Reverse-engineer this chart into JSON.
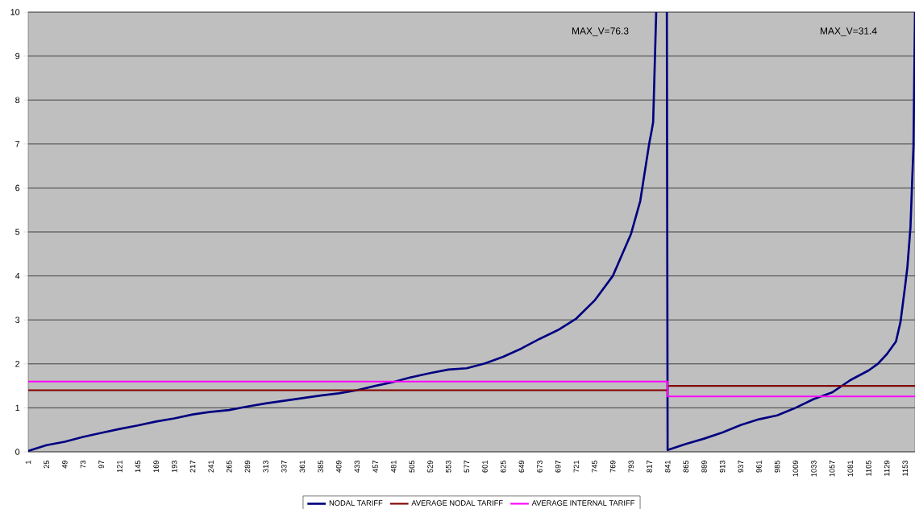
{
  "chart_data": {
    "type": "line",
    "annotations": [
      "MAX_V=76.3",
      "MAX_V=31.4"
    ],
    "xlim": [
      1,
      1166
    ],
    "ylim": [
      0,
      10
    ],
    "xticks": [
      1,
      25,
      49,
      73,
      97,
      121,
      145,
      169,
      193,
      217,
      241,
      265,
      289,
      313,
      337,
      361,
      385,
      409,
      433,
      457,
      481,
      505,
      529,
      553,
      577,
      601,
      625,
      649,
      673,
      697,
      721,
      745,
      769,
      793,
      817,
      841,
      865,
      889,
      913,
      937,
      961,
      985,
      1009,
      1033,
      1057,
      1081,
      1105,
      1129,
      1153
    ],
    "yticks": [
      0,
      1,
      2,
      3,
      4,
      5,
      6,
      7,
      8,
      9,
      10
    ],
    "grid": "y",
    "legend": "bottom",
    "series": [
      {
        "name": "NODAL TARIFF",
        "color": "#000080",
        "x": [
          1,
          25,
          49,
          73,
          97,
          121,
          145,
          169,
          193,
          217,
          241,
          265,
          289,
          313,
          337,
          361,
          385,
          409,
          433,
          457,
          481,
          505,
          529,
          553,
          577,
          601,
          625,
          649,
          673,
          697,
          721,
          745,
          769,
          793,
          805,
          817,
          820,
          822,
          826,
          833,
          840,
          841,
          865,
          889,
          913,
          937,
          961,
          985,
          1009,
          1033,
          1057,
          1081,
          1105,
          1117,
          1129,
          1141,
          1147,
          1153,
          1156,
          1160,
          1164,
          1166
        ],
        "values": [
          0.02,
          0.15,
          0.23,
          0.34,
          0.43,
          0.52,
          0.6,
          0.69,
          0.76,
          0.85,
          0.91,
          0.95,
          1.03,
          1.1,
          1.16,
          1.22,
          1.28,
          1.33,
          1.4,
          1.5,
          1.59,
          1.7,
          1.79,
          1.87,
          1.9,
          2.01,
          2.16,
          2.35,
          2.57,
          2.77,
          3.03,
          3.44,
          4.0,
          4.96,
          5.7,
          7.03,
          7.3,
          7.5,
          10,
          null,
          10,
          0.04,
          0.18,
          0.3,
          0.44,
          0.61,
          0.74,
          0.83,
          1.0,
          1.2,
          1.35,
          1.63,
          1.85,
          2.0,
          2.22,
          2.51,
          2.96,
          3.77,
          4.2,
          5.1,
          6.95,
          10
        ]
      },
      {
        "name": "AVERAGE NODAL TARIFF",
        "color": "#800000",
        "x": [
          1,
          841,
          841,
          1166
        ],
        "values": [
          1.4,
          1.4,
          1.5,
          1.5
        ]
      },
      {
        "name": "AVERAGE INTERNAL TARIFF",
        "color": "#ff00ff",
        "x": [
          1,
          841,
          841,
          1166
        ],
        "values": [
          1.6,
          1.6,
          1.26,
          1.26
        ]
      }
    ]
  }
}
